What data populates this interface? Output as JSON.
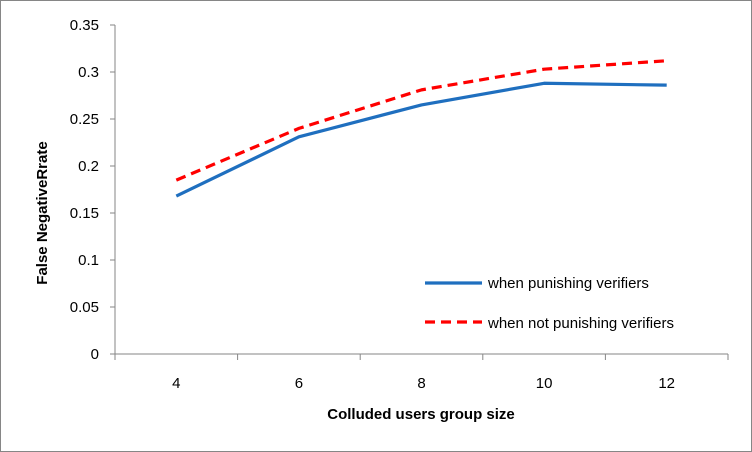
{
  "chart_data": {
    "type": "line",
    "title": "",
    "xlabel": "Colluded users group size",
    "ylabel": "False NegativeRrate",
    "categories": [
      "4",
      "6",
      "8",
      "10",
      "12"
    ],
    "ylim": [
      0,
      0.35
    ],
    "yticks": [
      "0",
      "0.05",
      "0.1",
      "0.15",
      "0.2",
      "0.25",
      "0.3",
      "0.35"
    ],
    "grid": false,
    "legend_position": "bottom-right",
    "series": [
      {
        "name": "when punishing verifiers",
        "values": [
          0.168,
          0.231,
          0.265,
          0.288,
          0.286
        ],
        "color": "#1f6fbf",
        "dash": "solid"
      },
      {
        "name": "when not punishing verifiers",
        "values": [
          0.185,
          0.24,
          0.281,
          0.303,
          0.312
        ],
        "color": "#ff0000",
        "dash": "dashed"
      }
    ]
  }
}
